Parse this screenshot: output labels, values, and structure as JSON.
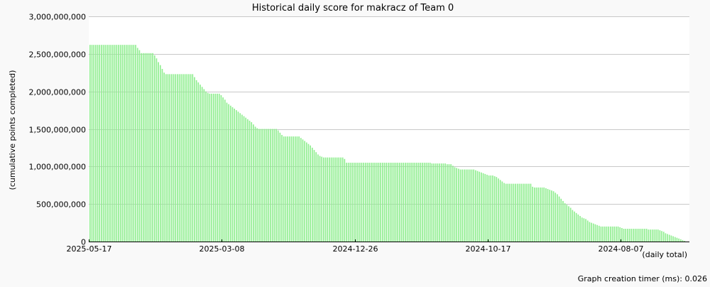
{
  "chart_data": {
    "type": "bar",
    "title": "Historical daily score for makracz of Team 0",
    "ylabel": "(cumulative points completed)",
    "xlabel": "(daily total)",
    "footer": "Graph creation timer (ms): 0.026",
    "ylim": [
      0,
      3000000000
    ],
    "y_ticks": [
      "0",
      "500,000,000",
      "1,000,000,000",
      "1,500,000,000",
      "2,000,000,000",
      "2,500,000,000",
      "3,000,000,000"
    ],
    "x_tick_labels": [
      "2025-05-17",
      "2025-03-08",
      "2024-12-26",
      "2024-10-17",
      "2024-08-07"
    ],
    "x_tick_indices": [
      0,
      70,
      140,
      210,
      280
    ],
    "grid": true,
    "bar_color": "#90ee90",
    "series_values": [
      2620000000,
      2620000000,
      2620000000,
      2620000000,
      2620000000,
      2620000000,
      2620000000,
      2620000000,
      2620000000,
      2620000000,
      2620000000,
      2620000000,
      2620000000,
      2620000000,
      2620000000,
      2620000000,
      2620000000,
      2620000000,
      2620000000,
      2620000000,
      2620000000,
      2620000000,
      2620000000,
      2620000000,
      2620000000,
      2580000000,
      2550000000,
      2510000000,
      2510000000,
      2510000000,
      2510000000,
      2510000000,
      2510000000,
      2510000000,
      2480000000,
      2440000000,
      2390000000,
      2350000000,
      2300000000,
      2250000000,
      2230000000,
      2230000000,
      2230000000,
      2230000000,
      2230000000,
      2230000000,
      2230000000,
      2230000000,
      2230000000,
      2230000000,
      2230000000,
      2230000000,
      2230000000,
      2230000000,
      2230000000,
      2190000000,
      2150000000,
      2120000000,
      2090000000,
      2060000000,
      2030000000,
      2000000000,
      1980000000,
      1970000000,
      1970000000,
      1970000000,
      1970000000,
      1970000000,
      1970000000,
      1950000000,
      1920000000,
      1890000000,
      1850000000,
      1830000000,
      1810000000,
      1790000000,
      1770000000,
      1750000000,
      1730000000,
      1710000000,
      1690000000,
      1670000000,
      1650000000,
      1630000000,
      1610000000,
      1590000000,
      1560000000,
      1530000000,
      1510000000,
      1500000000,
      1500000000,
      1500000000,
      1500000000,
      1500000000,
      1500000000,
      1500000000,
      1500000000,
      1500000000,
      1500000000,
      1480000000,
      1450000000,
      1420000000,
      1400000000,
      1400000000,
      1400000000,
      1400000000,
      1400000000,
      1400000000,
      1400000000,
      1400000000,
      1400000000,
      1380000000,
      1360000000,
      1340000000,
      1320000000,
      1300000000,
      1280000000,
      1250000000,
      1220000000,
      1190000000,
      1160000000,
      1140000000,
      1130000000,
      1120000000,
      1120000000,
      1120000000,
      1120000000,
      1120000000,
      1120000000,
      1120000000,
      1120000000,
      1120000000,
      1120000000,
      1120000000,
      1100000000,
      1050000000,
      1050000000,
      1050000000,
      1050000000,
      1050000000,
      1050000000,
      1050000000,
      1050000000,
      1050000000,
      1050000000,
      1050000000,
      1050000000,
      1050000000,
      1050000000,
      1050000000,
      1050000000,
      1050000000,
      1050000000,
      1050000000,
      1050000000,
      1050000000,
      1050000000,
      1050000000,
      1050000000,
      1050000000,
      1050000000,
      1050000000,
      1050000000,
      1050000000,
      1050000000,
      1050000000,
      1050000000,
      1050000000,
      1050000000,
      1050000000,
      1050000000,
      1050000000,
      1050000000,
      1050000000,
      1050000000,
      1050000000,
      1050000000,
      1050000000,
      1050000000,
      1050000000,
      1040000000,
      1040000000,
      1040000000,
      1040000000,
      1040000000,
      1040000000,
      1040000000,
      1040000000,
      1030000000,
      1030000000,
      1030000000,
      1010000000,
      990000000,
      980000000,
      970000000,
      960000000,
      960000000,
      960000000,
      960000000,
      960000000,
      960000000,
      960000000,
      960000000,
      950000000,
      940000000,
      930000000,
      920000000,
      910000000,
      900000000,
      890000000,
      880000000,
      880000000,
      880000000,
      870000000,
      860000000,
      840000000,
      820000000,
      800000000,
      780000000,
      770000000,
      770000000,
      770000000,
      770000000,
      770000000,
      770000000,
      770000000,
      770000000,
      770000000,
      770000000,
      770000000,
      770000000,
      770000000,
      770000000,
      730000000,
      720000000,
      720000000,
      720000000,
      720000000,
      720000000,
      720000000,
      710000000,
      700000000,
      690000000,
      680000000,
      670000000,
      650000000,
      630000000,
      600000000,
      570000000,
      540000000,
      510000000,
      490000000,
      470000000,
      450000000,
      420000000,
      400000000,
      380000000,
      360000000,
      340000000,
      320000000,
      310000000,
      300000000,
      280000000,
      260000000,
      250000000,
      240000000,
      230000000,
      220000000,
      210000000,
      200000000,
      200000000,
      200000000,
      200000000,
      200000000,
      200000000,
      200000000,
      200000000,
      200000000,
      200000000,
      190000000,
      180000000,
      170000000,
      170000000,
      170000000,
      170000000,
      170000000,
      170000000,
      170000000,
      170000000,
      170000000,
      170000000,
      170000000,
      170000000,
      170000000,
      160000000,
      160000000,
      160000000,
      160000000,
      160000000,
      160000000,
      150000000,
      140000000,
      130000000,
      110000000,
      100000000,
      90000000,
      80000000,
      70000000,
      60000000,
      50000000,
      40000000,
      30000000,
      20000000,
      10000000
    ]
  }
}
